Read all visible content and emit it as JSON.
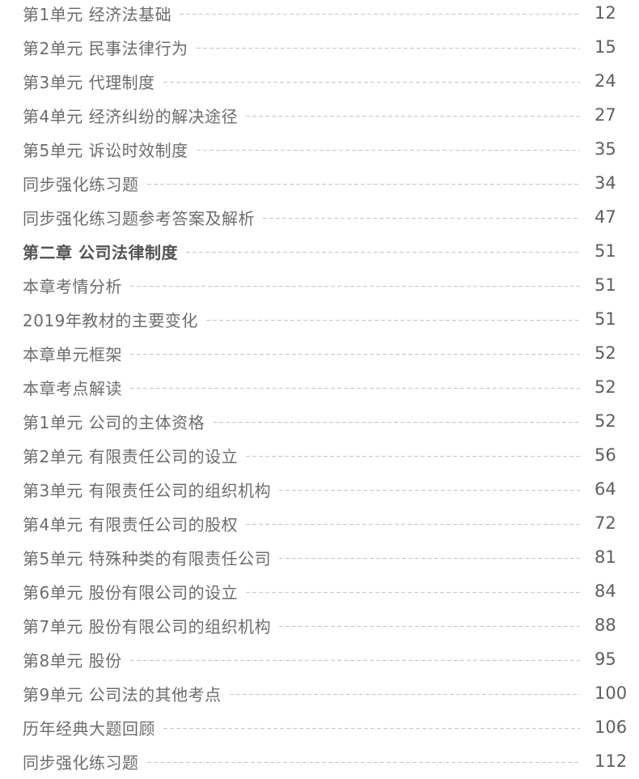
{
  "toc": {
    "entries": [
      {
        "title": "第1单元 经济法基础",
        "page": "12",
        "bold": false
      },
      {
        "title": "第2单元 民事法律行为",
        "page": "15",
        "bold": false
      },
      {
        "title": "第3单元 代理制度",
        "page": "24",
        "bold": false
      },
      {
        "title": "第4单元 经济纠纷的解决途径",
        "page": "27",
        "bold": false
      },
      {
        "title": "第5单元 诉讼时效制度",
        "page": "35",
        "bold": false
      },
      {
        "title": "同步强化练习题",
        "page": "34",
        "bold": false
      },
      {
        "title": "同步强化练习题参考答案及解析",
        "page": "47",
        "bold": false
      },
      {
        "title": "第二章 公司法律制度",
        "page": "51",
        "bold": true
      },
      {
        "title": "本章考情分析",
        "page": "51",
        "bold": false
      },
      {
        "title": "2019年教材的主要变化",
        "page": "51",
        "bold": false
      },
      {
        "title": "本章单元框架",
        "page": "52",
        "bold": false
      },
      {
        "title": "本章考点解读",
        "page": "52",
        "bold": false
      },
      {
        "title": "第1单元 公司的主体资格",
        "page": "52",
        "bold": false
      },
      {
        "title": "第2单元 有限责任公司的设立",
        "page": "56",
        "bold": false
      },
      {
        "title": "第3单元 有限责任公司的组织机构",
        "page": "64",
        "bold": false
      },
      {
        "title": "第4单元 有限责任公司的股权",
        "page": "72",
        "bold": false
      },
      {
        "title": "第5单元 特殊种类的有限责任公司",
        "page": "81",
        "bold": false
      },
      {
        "title": "第6单元 股份有限公司的设立",
        "page": "84",
        "bold": false
      },
      {
        "title": "第7单元 股份有限公司的组织机构",
        "page": "88",
        "bold": false
      },
      {
        "title": "第8单元 股份",
        "page": "95",
        "bold": false
      },
      {
        "title": "第9单元 公司法的其他考点",
        "page": "100",
        "bold": false
      },
      {
        "title": "历年经典大题回顾",
        "page": "106",
        "bold": false
      },
      {
        "title": "同步强化练习题",
        "page": "112",
        "bold": false
      }
    ]
  },
  "colors": {
    "text": "#6c6c6c",
    "bold_text": "#535353",
    "page_number": "#5e5e5e",
    "leader_dash": "#c6c6c6",
    "background": "#ffffff"
  }
}
